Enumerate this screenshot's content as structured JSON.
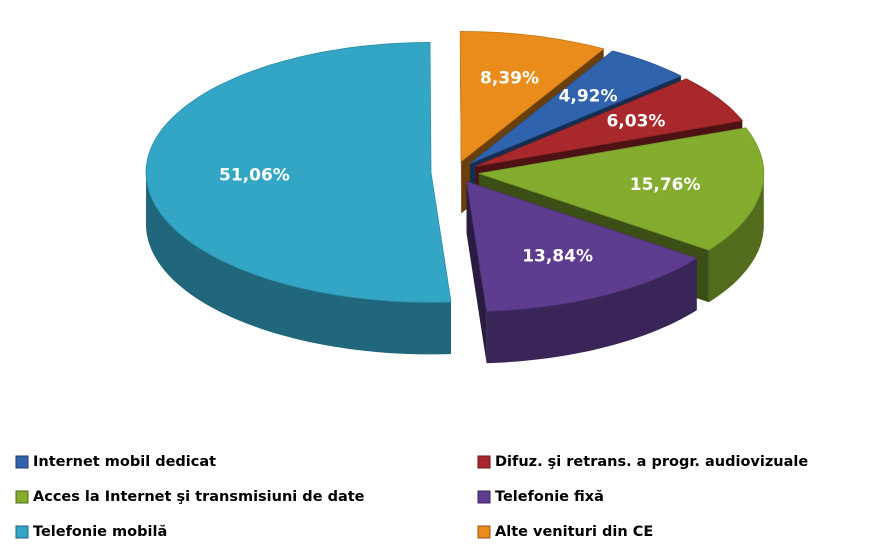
{
  "chart_data": {
    "type": "pie3d",
    "categories": [
      "Internet mobil dedicat",
      "Difuz. şi retrans. a progr. audiovizuale",
      "Acces la Internet şi transmisiuni de date",
      "Telefonie fixă",
      "Telefonie mobilă",
      "Alte venituri din CE"
    ],
    "values": [
      4.92,
      6.03,
      15.76,
      13.84,
      51.06,
      8.39
    ],
    "value_labels": [
      "4,92%",
      "6,03%",
      "15,76%",
      "13,84%",
      "51,06%",
      "8,39%"
    ],
    "colors": [
      "#2f63ad",
      "#a8282c",
      "#84ad2f",
      "#5e3c8f",
      "#33a6c6",
      "#ea8c1c"
    ],
    "legend": "bottom"
  }
}
